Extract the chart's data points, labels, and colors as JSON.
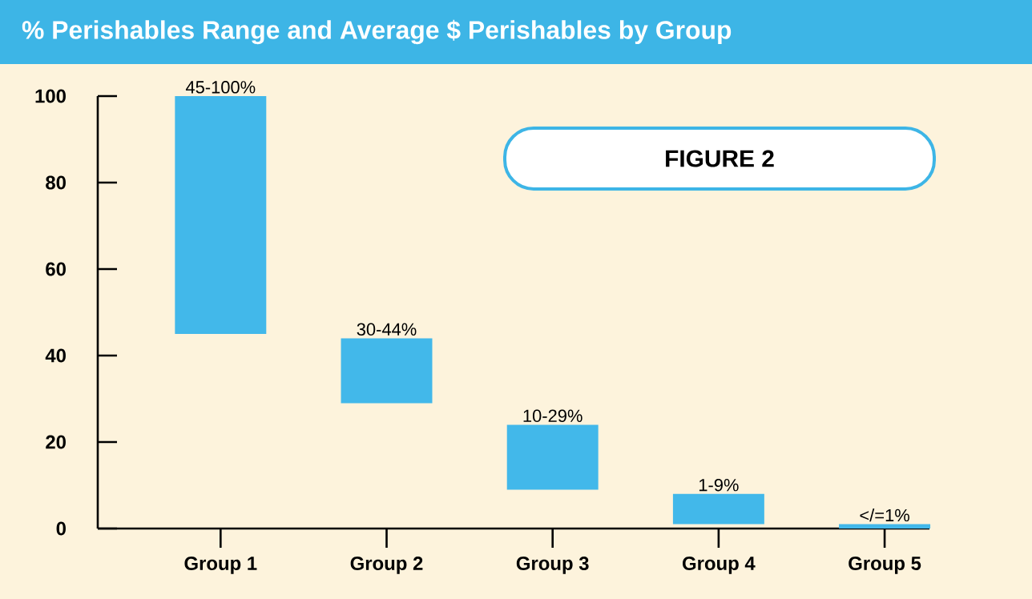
{
  "chart_data": {
    "type": "bar",
    "title": "% Perishables Range and Average $ Perishables by Group",
    "categories": [
      "Group 1",
      "Group 2",
      "Group 3",
      "Group 4",
      "Group 5"
    ],
    "values": [
      55,
      15,
      15,
      7,
      1
    ],
    "base": [
      45,
      29,
      9,
      1,
      0
    ],
    "color": "#42b8ea",
    "ylim": [
      0,
      100
    ],
    "yticks": [
      0,
      20,
      40,
      60,
      80,
      100
    ],
    "annotations": [
      "FIGURE 2",
      {
        "text": "45-100%",
        "x": "Group 1",
        "y": 100
      },
      {
        "text": "30-44%",
        "x": "Group 2",
        "y": 44
      },
      {
        "text": "10-29%",
        "x": "Group 3",
        "y": 24
      },
      {
        "text": "1-9%",
        "x": "Group 4",
        "y": 8
      },
      {
        "text": "</=1%",
        "x": "Group 5",
        "y": 1
      }
    ]
  }
}
